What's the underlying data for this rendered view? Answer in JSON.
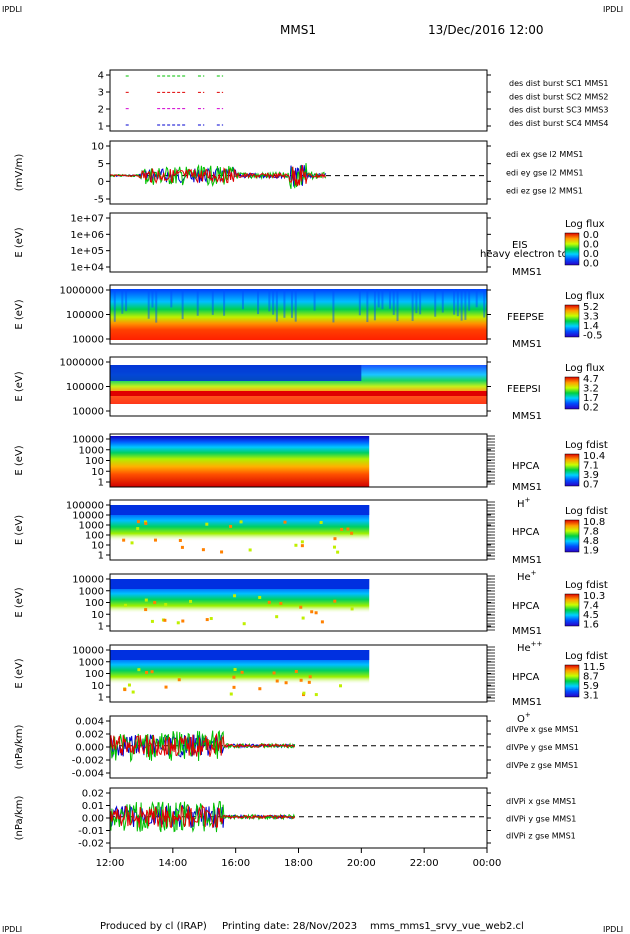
{
  "header": {
    "corner_label": "IPDLI",
    "title": "MMS1",
    "datetime": "13/Dec/2016 12:00"
  },
  "footer": {
    "produced_by": "Produced by cl (IRAP)",
    "printing_date": "Printing date: 28/Nov/2023",
    "filename": "mms_mms1_srvy_vue_web2.cl"
  },
  "colors": {
    "red": "#e00000",
    "green": "#00c000",
    "blue": "#0000d0",
    "magenta": "#d000d0"
  },
  "chart_data": {
    "type": "line",
    "shared_x": {
      "ticks": [
        "12:00",
        "14:00",
        "16:00",
        "18:00",
        "20:00",
        "22:00",
        "00:00"
      ],
      "range_hours": [
        12,
        24
      ]
    },
    "panels": [
      {
        "id": "burst",
        "ylabel": "",
        "yticks": [
          "4",
          "3",
          "2",
          "1"
        ],
        "legend": [
          {
            "text": "des dist burst SC1 MMS1",
            "color": "#0000d0"
          },
          {
            "text": "des dist burst SC2 MMS2",
            "color": "#d000d0"
          },
          {
            "text": "des dist burst SC3 MMS3",
            "color": "#e00000"
          },
          {
            "text": "des dist burst SC4 MMS4",
            "color": "#00c000"
          }
        ],
        "series": [
          {
            "level": 4,
            "intervals": [
              [
                12.5,
                12.6
              ],
              [
                13.5,
                14.4
              ],
              [
                14.8,
                15.0
              ],
              [
                15.4,
                15.6
              ]
            ]
          },
          {
            "level": 3,
            "intervals": [
              [
                12.5,
                12.6
              ],
              [
                13.5,
                14.4
              ],
              [
                14.8,
                15.0
              ],
              [
                15.4,
                15.6
              ]
            ]
          },
          {
            "level": 2,
            "intervals": [
              [
                12.5,
                12.6
              ],
              [
                13.5,
                14.4
              ],
              [
                14.8,
                15.0
              ],
              [
                15.4,
                15.6
              ]
            ]
          },
          {
            "level": 1,
            "intervals": [
              [
                12.5,
                12.6
              ],
              [
                13.5,
                14.4
              ],
              [
                14.8,
                15.0
              ],
              [
                15.4,
                15.6
              ]
            ]
          }
        ]
      },
      {
        "id": "edi",
        "ylabel": "(mV/m)",
        "yticks": [
          "10",
          "5",
          "0",
          "-5"
        ],
        "legend": [
          {
            "text": "edi ex gse l2 MMS1",
            "color": "#e00000"
          },
          {
            "text": "edi ey gse l2 MMS1",
            "color": "#00c000"
          },
          {
            "text": "edi ez gse l2 MMS1",
            "color": "#0000d0"
          }
        ]
      },
      {
        "id": "eis",
        "ylabel": "E (eV)",
        "yticks": [
          "1e+07",
          "1e+06",
          "1e+05",
          "1e+04"
        ],
        "instrument": "EIS",
        "spacecraft": "MMS1",
        "species_overlay": "heavy electron to",
        "cbar_title": "Log flux",
        "cbar_ticks": [
          "0.0",
          "0.0",
          "0.0",
          "0.0"
        ]
      },
      {
        "id": "feepse",
        "ylabel": "E (eV)",
        "yticks": [
          "1000000",
          "100000",
          "10000"
        ],
        "instrument": "FEEPSE",
        "spacecraft": "MMS1",
        "cbar_title": "Log flux",
        "cbar_ticks": [
          "5.2",
          "3.3",
          "1.4",
          "-0.5"
        ]
      },
      {
        "id": "feepsi",
        "ylabel": "E (eV)",
        "yticks": [
          "1000000",
          "100000",
          "10000"
        ],
        "instrument": "FEEPSI",
        "spacecraft": "MMS1",
        "cbar_title": "Log flux",
        "cbar_ticks": [
          "4.7",
          "3.2",
          "1.7",
          "0.2"
        ]
      },
      {
        "id": "hpca_h",
        "ylabel": "E (eV)",
        "yticks": [
          "10000",
          "1000",
          "100",
          "10",
          "1"
        ],
        "instrument": "HPCA",
        "spacecraft": "MMS1",
        "species": "H",
        "species_sup": "+",
        "cbar_title": "Log fdist",
        "cbar_ticks": [
          "10.4",
          "7.1",
          "3.9",
          "0.7"
        ]
      },
      {
        "id": "hpca_he1",
        "ylabel": "E (eV)",
        "yticks": [
          "100000",
          "10000",
          "1000",
          "100",
          "10",
          "1"
        ],
        "instrument": "HPCA",
        "spacecraft": "MMS1",
        "species": "He",
        "species_sup": "+",
        "cbar_title": "Log fdist",
        "cbar_ticks": [
          "10.8",
          "7.8",
          "4.8",
          "1.9"
        ]
      },
      {
        "id": "hpca_he2",
        "ylabel": "E (eV)",
        "yticks": [
          "10000",
          "1000",
          "100",
          "10",
          "1"
        ],
        "instrument": "HPCA",
        "spacecraft": "MMS1",
        "species": "He",
        "species_sup": "++",
        "cbar_title": "Log fdist",
        "cbar_ticks": [
          "10.3",
          "7.4",
          "4.5",
          "1.6"
        ]
      },
      {
        "id": "hpca_o",
        "ylabel": "E (eV)",
        "yticks": [
          "10000",
          "1000",
          "100",
          "10",
          "1"
        ],
        "instrument": "HPCA",
        "spacecraft": "MMS1",
        "species": "O",
        "species_sup": "+",
        "cbar_title": "Log fdist",
        "cbar_ticks": [
          "11.5",
          "8.7",
          "5.9",
          "3.1"
        ]
      },
      {
        "id": "divpe",
        "ylabel": "(nPa/km)",
        "yticks": [
          "0.004",
          "0.002",
          "0.000",
          "-0.002",
          "-0.004"
        ],
        "legend": [
          {
            "text": "dIVPe x gse MMS1",
            "color": "#e00000"
          },
          {
            "text": "dIVPe y gse MMS1",
            "color": "#00c000"
          },
          {
            "text": "dIVPe z gse MMS1",
            "color": "#0000d0"
          }
        ]
      },
      {
        "id": "divpi",
        "ylabel": "(nPa/km)",
        "yticks": [
          "0.02",
          "0.01",
          "0.00",
          "-0.01",
          "-0.02"
        ],
        "legend": [
          {
            "text": "dIVPi x gse MMS1",
            "color": "#e00000"
          },
          {
            "text": "dIVPi y gse MMS1",
            "color": "#00c000"
          },
          {
            "text": "dIVPi z gse MMS1",
            "color": "#0000d0"
          }
        ]
      }
    ]
  }
}
